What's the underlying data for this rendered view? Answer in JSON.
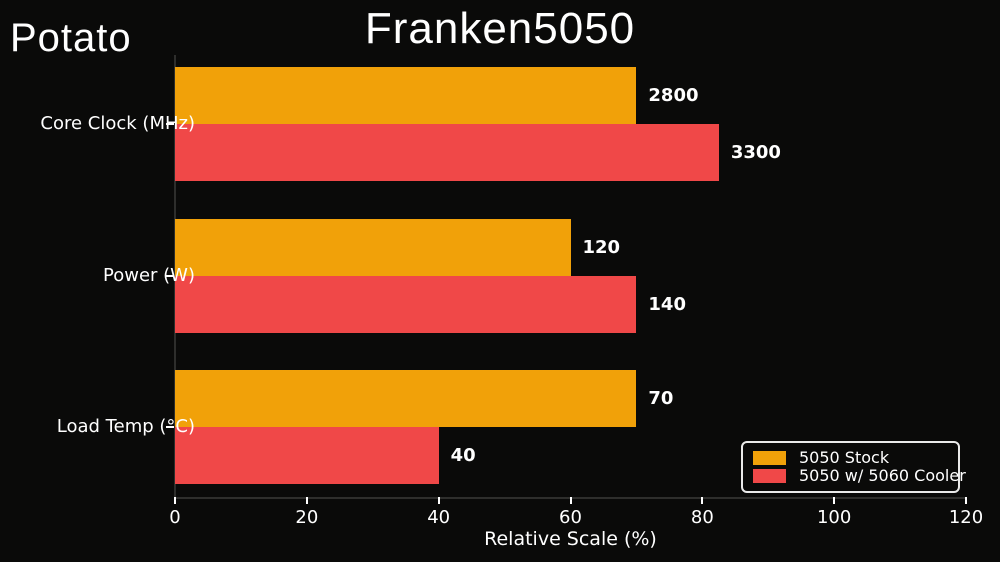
{
  "watermark": "Potato",
  "title": "Franken5050",
  "colors": {
    "background": "#0a0a09",
    "text": "#ffffff",
    "axis_spine": "#2e2e2c",
    "tick_mark": "#ffffff",
    "series_orange": "#f1a109",
    "series_red": "#f04848"
  },
  "legend": {
    "entries": [
      {
        "label": "5050 Stock",
        "color": "#f1a109"
      },
      {
        "label": "5050 w/ 5060 Cooler",
        "color": "#f04848"
      }
    ],
    "position": "lower right"
  },
  "chart_data": {
    "type": "bar",
    "orientation": "horizontal",
    "title": "Franken5050",
    "xlabel": "Relative Scale (%)",
    "ylabel": "",
    "categories": [
      "Core Clock (MHz)",
      "Power (W)",
      "Load Temp (°C)"
    ],
    "series": [
      {
        "name": "5050 Stock",
        "color": "#f1a109",
        "values": [
          2800,
          120,
          70
        ],
        "value_labels": [
          "2800",
          "120",
          "70"
        ],
        "relative_percent": [
          70,
          60,
          70
        ]
      },
      {
        "name": "5050 w/ 5060 Cooler",
        "color": "#f04848",
        "values": [
          3300,
          140,
          40
        ],
        "value_labels": [
          "3300",
          "140",
          "40"
        ],
        "relative_percent": [
          82.5,
          70,
          40
        ]
      }
    ],
    "xlim": [
      0,
      120
    ],
    "xticks": [
      0,
      20,
      40,
      60,
      80,
      100,
      120
    ],
    "grid": false,
    "legend_position": "lower right"
  }
}
